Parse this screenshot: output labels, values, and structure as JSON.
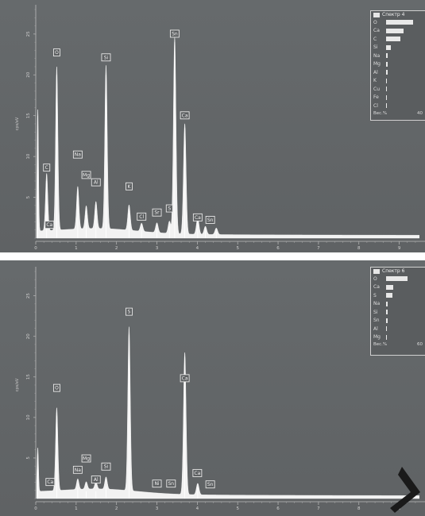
{
  "chart_data": [
    {
      "type": "line",
      "title": "",
      "xlabel": "",
      "ylabel": "cps/eV",
      "xlim": [
        0,
        9.5
      ],
      "ylim": [
        0,
        28
      ],
      "x_ticks": [
        "0",
        "1",
        "2",
        "3",
        "4",
        "5",
        "6",
        "7",
        "8",
        "9"
      ],
      "y_ticks": [
        "5",
        "10",
        "15",
        "20",
        "25"
      ],
      "peaks": [
        {
          "x": 0.05,
          "y": 15
        },
        {
          "x": 0.27,
          "y": 7
        },
        {
          "x": 0.52,
          "y": 20
        },
        {
          "x": 1.04,
          "y": 5.2
        },
        {
          "x": 1.25,
          "y": 2.8
        },
        {
          "x": 1.49,
          "y": 3.3
        },
        {
          "x": 1.74,
          "y": 20
        },
        {
          "x": 2.31,
          "y": 3.1
        },
        {
          "x": 2.62,
          "y": 1.0
        },
        {
          "x": 3.0,
          "y": 1.2
        },
        {
          "x": 3.31,
          "y": 1.5
        },
        {
          "x": 3.44,
          "y": 24
        },
        {
          "x": 3.69,
          "y": 13.5
        },
        {
          "x": 4.01,
          "y": 2.0
        },
        {
          "x": 4.2,
          "y": 1.0
        },
        {
          "x": 4.47,
          "y": 0.8
        }
      ],
      "peak_labels": [
        {
          "label": "O",
          "x": 0.52,
          "y": 22.4
        },
        {
          "label": "C",
          "x": 0.27,
          "y": 8.3
        },
        {
          "label": "Ca",
          "x": 0.34,
          "y": 1.3
        },
        {
          "label": "Na",
          "x": 1.04,
          "y": 9.9
        },
        {
          "label": "Mg",
          "x": 1.25,
          "y": 7.4
        },
        {
          "label": "Al",
          "x": 1.49,
          "y": 6.5
        },
        {
          "label": "Si",
          "x": 1.74,
          "y": 21.8
        },
        {
          "label": "K",
          "x": 2.31,
          "y": 6.0
        },
        {
          "label": "Cl",
          "x": 2.62,
          "y": 2.3
        },
        {
          "label": "Sr",
          "x": 3.0,
          "y": 2.8
        },
        {
          "label": "S",
          "x": 3.31,
          "y": 3.3
        },
        {
          "label": "Sn",
          "x": 3.44,
          "y": 24.7
        },
        {
          "label": "Ca",
          "x": 3.69,
          "y": 14.7
        },
        {
          "label": "Ca",
          "x": 4.01,
          "y": 2.2
        },
        {
          "label": "Sn",
          "x": 4.32,
          "y": 1.9
        }
      ],
      "legend": {
        "title": "Спектр 4",
        "position": "top-right",
        "elements": [
          "O",
          "Ca",
          "C",
          "Si",
          "Na",
          "Mg",
          "Al",
          "K",
          "Cu",
          "Fe",
          "Cl"
        ],
        "values": [
          0.72,
          0.46,
          0.38,
          0.13,
          0.05,
          0.04,
          0.035,
          0.03,
          0.025,
          0.02,
          0.015
        ],
        "footer_left": "Вес.%",
        "footer_right": "40"
      }
    },
    {
      "type": "line",
      "title": "",
      "xlabel": "",
      "ylabel": "cps/eV",
      "xlim": [
        0,
        9.5
      ],
      "ylim": [
        0,
        28
      ],
      "x_ticks": [
        "0",
        "1",
        "2",
        "3",
        "4",
        "5",
        "6",
        "7",
        "8",
        "9"
      ],
      "y_ticks": [
        "5",
        "10",
        "15",
        "20",
        "25"
      ],
      "peaks": [
        {
          "x": 0.05,
          "y": 5.5
        },
        {
          "x": 0.52,
          "y": 10.2
        },
        {
          "x": 1.04,
          "y": 1.3
        },
        {
          "x": 1.25,
          "y": 0.9
        },
        {
          "x": 1.49,
          "y": 0.9
        },
        {
          "x": 1.74,
          "y": 1.5
        },
        {
          "x": 2.31,
          "y": 20.2
        },
        {
          "x": 3.69,
          "y": 17.5
        },
        {
          "x": 4.01,
          "y": 1.4
        }
      ],
      "peak_labels": [
        {
          "label": "O",
          "x": 0.52,
          "y": 13.3
        },
        {
          "label": "Ca",
          "x": 0.36,
          "y": 1.7
        },
        {
          "label": "Na",
          "x": 1.04,
          "y": 3.2
        },
        {
          "label": "Mg",
          "x": 1.25,
          "y": 4.6
        },
        {
          "label": "Al",
          "x": 1.49,
          "y": 2.0
        },
        {
          "label": "Si",
          "x": 1.74,
          "y": 3.6
        },
        {
          "label": "S",
          "x": 2.31,
          "y": 22.7
        },
        {
          "label": "Ni",
          "x": 3.0,
          "y": 1.5
        },
        {
          "label": "Sn",
          "x": 3.35,
          "y": 1.5
        },
        {
          "label": "Ca",
          "x": 3.69,
          "y": 14.5
        },
        {
          "label": "Ca",
          "x": 4.0,
          "y": 2.8
        },
        {
          "label": "Sn",
          "x": 4.32,
          "y": 1.4
        }
      ],
      "legend": {
        "title": "Спектр 6",
        "position": "top-right",
        "elements": [
          "O",
          "Ca",
          "S",
          "Na",
          "Si",
          "Sn",
          "Al",
          "Mg"
        ],
        "values": [
          0.58,
          0.2,
          0.17,
          0.05,
          0.04,
          0.04,
          0.03,
          0.03
        ],
        "footer_left": "Вес.%",
        "footer_right": "60"
      }
    }
  ]
}
